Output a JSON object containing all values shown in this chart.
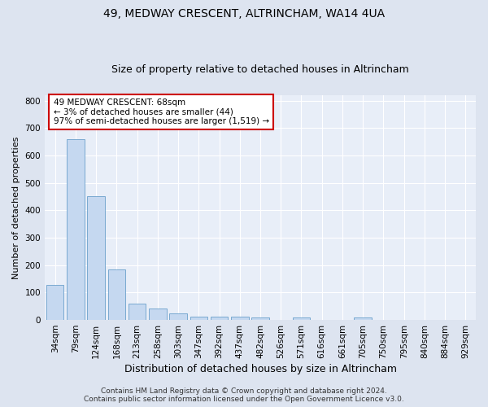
{
  "title": "49, MEDWAY CRESCENT, ALTRINCHAM, WA14 4UA",
  "subtitle": "Size of property relative to detached houses in Altrincham",
  "xlabel": "Distribution of detached houses by size in Altrincham",
  "ylabel": "Number of detached properties",
  "categories": [
    "34sqm",
    "79sqm",
    "124sqm",
    "168sqm",
    "213sqm",
    "258sqm",
    "303sqm",
    "347sqm",
    "392sqm",
    "437sqm",
    "482sqm",
    "526sqm",
    "571sqm",
    "616sqm",
    "661sqm",
    "705sqm",
    "750sqm",
    "795sqm",
    "840sqm",
    "884sqm",
    "929sqm"
  ],
  "values": [
    128,
    660,
    450,
    185,
    60,
    43,
    25,
    12,
    13,
    11,
    9,
    0,
    8,
    0,
    0,
    8,
    0,
    0,
    0,
    0,
    0
  ],
  "bar_color": "#c5d8f0",
  "bar_edge_color": "#6aa0cb",
  "annotation_text": "49 MEDWAY CRESCENT: 68sqm\n← 3% of detached houses are smaller (44)\n97% of semi-detached houses are larger (1,519) →",
  "annotation_box_color": "white",
  "annotation_border_color": "#cc0000",
  "ylim": [
    0,
    820
  ],
  "yticks": [
    0,
    100,
    200,
    300,
    400,
    500,
    600,
    700,
    800
  ],
  "background_color": "#dde4f0",
  "plot_background_color": "#e8eef8",
  "grid_color": "#ffffff",
  "footer_line1": "Contains HM Land Registry data © Crown copyright and database right 2024.",
  "footer_line2": "Contains public sector information licensed under the Open Government Licence v3.0.",
  "title_fontsize": 10,
  "subtitle_fontsize": 9,
  "xlabel_fontsize": 9,
  "ylabel_fontsize": 8,
  "tick_fontsize": 7.5,
  "annotation_fontsize": 7.5,
  "footer_fontsize": 6.5
}
